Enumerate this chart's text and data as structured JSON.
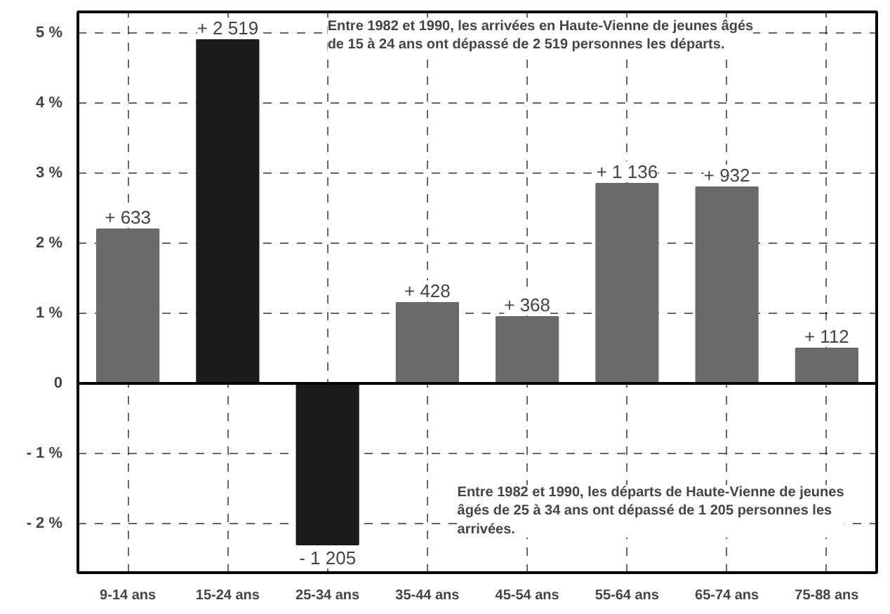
{
  "chart_data": {
    "type": "bar",
    "categories": [
      "9-14 ans",
      "15-24 ans",
      "25-34 ans",
      "35-44 ans",
      "45-54 ans",
      "55-64 ans",
      "65-74 ans",
      "75-88 ans"
    ],
    "values": [
      2.2,
      4.9,
      -2.3,
      1.15,
      0.95,
      2.85,
      2.8,
      0.5
    ],
    "colors": [
      "#6a6a6a",
      "#1a1a1a",
      "#1a1a1a",
      "#6a6a6a",
      "#6a6a6a",
      "#6a6a6a",
      "#6a6a6a",
      "#6a6a6a"
    ],
    "ylim": [
      -2.7,
      5.3
    ],
    "yticks": [
      {
        "value": -2,
        "label": "- 2 %"
      },
      {
        "value": -1,
        "label": "- 1 %"
      },
      {
        "value": 0,
        "label": "0"
      },
      {
        "value": 1,
        "label": "1 %"
      },
      {
        "value": 2,
        "label": "2 %"
      },
      {
        "value": 3,
        "label": "3 %"
      },
      {
        "value": 4,
        "label": "4 %"
      },
      {
        "value": 5,
        "label": "5 %"
      }
    ],
    "grid": true,
    "annotations": [
      "Entre 1982 et 1990, les arrivées en Haute-Vienne de jeunes âgés\nde 15 à 24 ans ont dépassé de 2 519 personnes les départs.",
      "Entre 1982 et 1990, les départs de Haute-Vienne de jeunes\nâgés de 25 à 34 ans ont dépassé de 1 205 personnes les\narrivées.",
      {
        "text": "+ 633",
        "x": "9-14 ans",
        "y": 2.2
      },
      {
        "text": "+ 2 519",
        "x": "15-24 ans",
        "y": 4.9
      },
      {
        "text": "- 1 205",
        "x": "25-34 ans",
        "y": -2.3
      },
      {
        "text": "+ 428",
        "x": "35-44 ans",
        "y": 1.15
      },
      {
        "text": "+ 368",
        "x": "45-54 ans",
        "y": 0.95
      },
      {
        "text": "+ 1 136",
        "x": "55-64 ans",
        "y": 2.85
      },
      {
        "text": "+ 932",
        "x": "65-74 ans",
        "y": 2.8
      },
      {
        "text": "+ 112",
        "x": "75-88 ans",
        "y": 0.5
      }
    ]
  }
}
